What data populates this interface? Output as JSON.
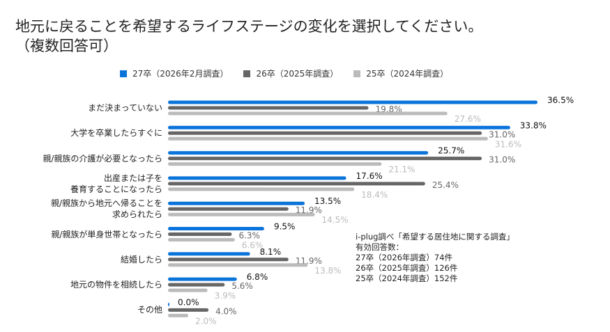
{
  "title_lines": [
    "地元に戻ることを希望するライフステージの変化を選択してください。",
    "（複数回答可）"
  ],
  "note_lines": [
    "i-plug調べ「希望する居住地に関する調査」",
    "有効回答数：",
    "27卒（2026年調査）74件",
    "26卒（2025年調査）126件",
    "25卒（2024年調査）152件"
  ],
  "chart_data": {
    "type": "bar",
    "orientation": "horizontal",
    "categories": [
      "まだ決まっていない",
      "大学を卒業したらすぐに",
      "親/親族の介護が必要となったら",
      "出産または子を\n養育することになったら",
      "親/親族から地元へ帰ることを\n求められたら",
      "親/親族が単身世帯となったら",
      "結婚したら",
      "地元の物件を相続したら",
      "その他"
    ],
    "series": [
      {
        "name": "27卒（2026年2月調査）",
        "color": "#0a74da",
        "values": [
          36.5,
          33.8,
          25.7,
          17.6,
          13.5,
          9.5,
          8.1,
          6.8,
          0.0
        ]
      },
      {
        "name": "26卒（2025年調査）",
        "color": "#666666",
        "values": [
          19.8,
          31.0,
          31.0,
          25.4,
          11.9,
          6.3,
          11.9,
          5.6,
          4.0
        ]
      },
      {
        "name": "25卒（2024年調査）",
        "color": "#bbbbbb",
        "values": [
          27.6,
          31.6,
          21.1,
          18.4,
          14.5,
          6.6,
          13.8,
          3.9,
          2.0
        ]
      }
    ],
    "value_suffix": "%",
    "legend_position": "top",
    "grid": false
  }
}
